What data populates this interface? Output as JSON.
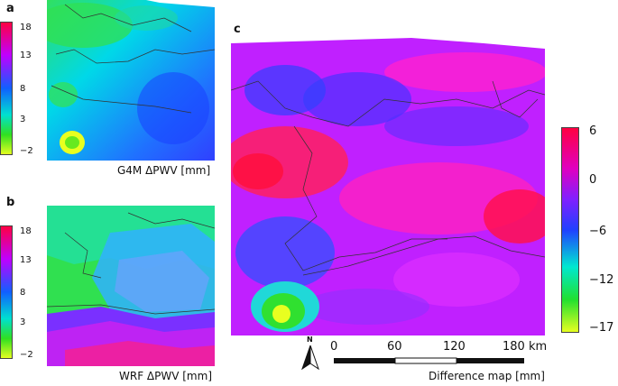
{
  "panels": {
    "a": {
      "label": "a",
      "caption": "G4M ΔPWV [mm]",
      "colorbar": {
        "ticks": [
          "18",
          "13",
          "8",
          "3",
          "−2"
        ]
      }
    },
    "b": {
      "label": "b",
      "caption": "WRF ΔPWV [mm]",
      "colorbar": {
        "ticks": [
          "18",
          "13",
          "8",
          "3",
          "−2"
        ]
      }
    },
    "c": {
      "label": "c",
      "caption": "Difference map [mm]",
      "colorbar": {
        "ticks": [
          "6",
          "0",
          "−6",
          "−12",
          "−17"
        ]
      }
    }
  },
  "scale_bar": {
    "labels": [
      "0",
      "60",
      "120",
      "180 km"
    ]
  },
  "north_arrow": {
    "label": "N",
    "icon": "north-arrow-icon"
  },
  "colors": {
    "gradient_a_b": [
      "#ff0040",
      "#c000ff",
      "#1060ff",
      "#00e0d0",
      "#30e020",
      "#e8ff20"
    ],
    "gradient_c": [
      "#ff0040",
      "#e000c0",
      "#8020ff",
      "#2040ff",
      "#00e8d0",
      "#20e030",
      "#e8ff20"
    ]
  }
}
